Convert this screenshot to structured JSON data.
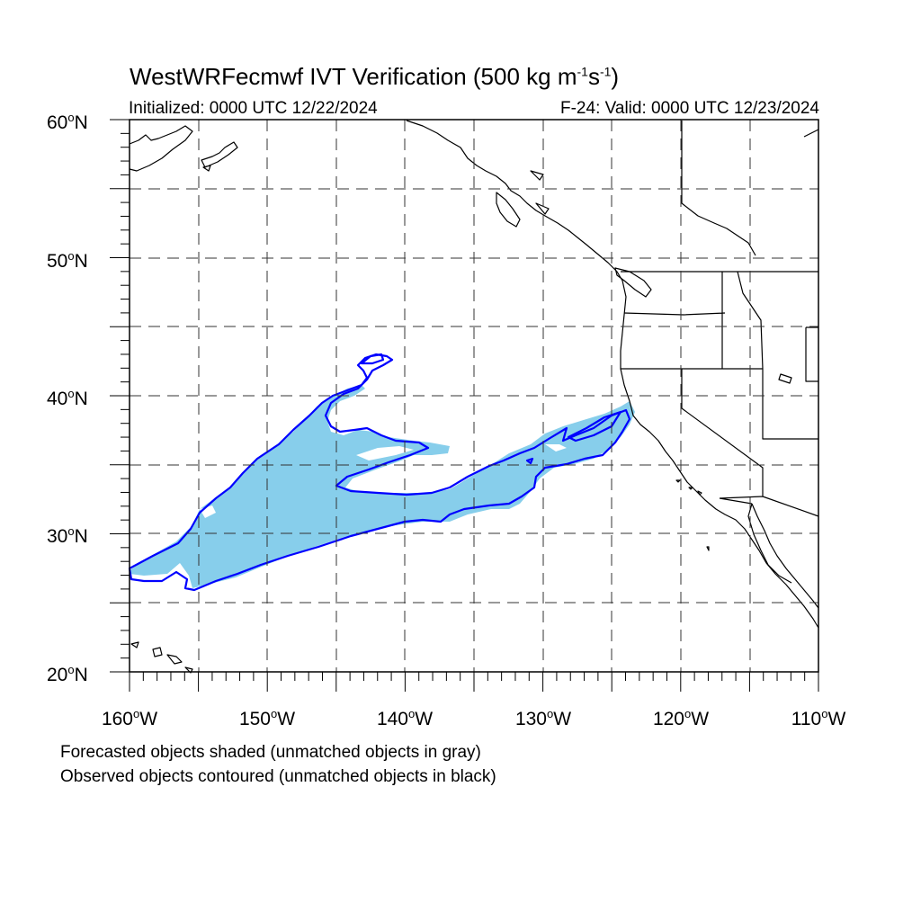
{
  "header": {
    "title_main": "WestWRFecmwf IVT Verification (500 kg m",
    "title_exp1": "-1",
    "title_mid": "s",
    "title_exp2": "-1",
    "title_end": ")",
    "initialized": "Initialized: 0000 UTC 12/22/2024",
    "valid": "F-24: Valid: 0000 UTC 12/23/2024"
  },
  "map": {
    "projection": "cylindrical equidistant",
    "lon_range": [
      -160,
      -110
    ],
    "lat_range": [
      20,
      60
    ],
    "grid": "dashed every 5 degrees",
    "lat_labels": [
      "60",
      "50",
      "40",
      "30",
      "20"
    ],
    "lat_suffix": "N",
    "lon_labels": [
      "160",
      "150",
      "140",
      "130",
      "120",
      "110"
    ],
    "lon_suffix": "W",
    "degree_symbol": "o",
    "forecast_fill_color": "#87ceeb",
    "observed_contour_color": "#0000ff",
    "coastline_color": "#000000"
  },
  "legend": {
    "line1": "Forecasted objects shaded (unmatched objects in gray)",
    "line2": "Observed objects contoured (unmatched objects in black)"
  }
}
